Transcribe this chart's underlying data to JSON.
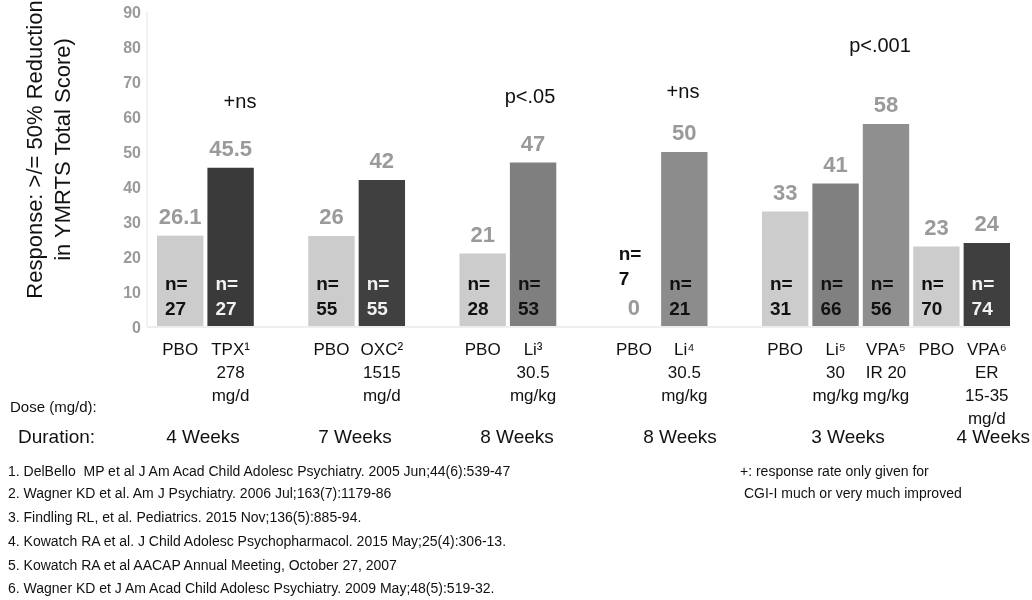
{
  "chart_data": {
    "type": "bar",
    "ylabel": "Response: >/= 50% Reduction\nin YMRTS Total Score)",
    "categories": [
      "PBO",
      "TPX¹\n278\nmg/d",
      null,
      "PBO",
      "OXC²\n1515\nmg/d",
      null,
      "PBO",
      "Li³\n30.5\nmg/kg",
      null,
      "PBO",
      "Li⁴\n30.5\nmg/kg",
      null,
      "PBO",
      "Li⁵\n30\nmg/kg",
      "VPA⁵\nIR 20\nmg/kg",
      "PBO",
      "VPA⁶\nER\n15-35\nmg/d"
    ],
    "values": [
      26.1,
      45.5,
      null,
      26,
      42,
      null,
      21,
      47,
      null,
      0,
      50,
      null,
      33,
      41,
      58,
      23,
      24
    ],
    "colors": [
      "#cccccc",
      "#3a3a3a",
      null,
      "#cccccc",
      "#404040",
      null,
      "#cccccc",
      "#7f7f7f",
      null,
      "#cccccc",
      "#8c8c8c",
      null,
      "#cccccc",
      "#808080",
      "#8f8f8f",
      "#cccccc",
      "#3f3f3f"
    ],
    "ylim": [
      0,
      90
    ],
    "yticks": [
      0,
      10,
      20,
      30,
      40,
      50,
      60,
      70,
      80,
      90
    ],
    "data_labels": true,
    "grid": false,
    "annotations": [
      "n=\n27",
      "n=\n27",
      "n=\n55",
      "n=\n55",
      "n=\n28",
      "n=\n53",
      "n=\n7",
      "n=\n21",
      "n=\n31",
      "n=\n66",
      "n=\n56",
      "n=\n70",
      "n=\n74",
      "+ns",
      "p<.05",
      "+ns",
      "p<.001",
      "Dose (mg/d):",
      "Duration:",
      "4 Weeks",
      "7 Weeks",
      "8 Weeks",
      "8 Weeks",
      "3 Weeks",
      "4 Weeks",
      "1. DelBello  MP et al J Am Acad Child Adolesc Psychiatry. 2005 Jun;44(6):539-47",
      "2. Wagner KD et al. Am J Psychiatry. 2006 Jul;163(7):1179-86",
      "3. Findling RL, et al. Pediatrics. 2015 Nov;136(5):885-94.",
      "4. Kowatch RA et al. J Child Adolesc Psychopharmacol. 2015 May;25(4):306-13.",
      "5. Kowatch RA et al AACAP Annual Meeting, October 27, 2007",
      "6. Wagner KD et J Am Acad Child Adolesc Psychiatry. 2009 May;48(5):519-32.",
      "+: response rate only given for\n CGI-I much or very much improved"
    ]
  }
}
